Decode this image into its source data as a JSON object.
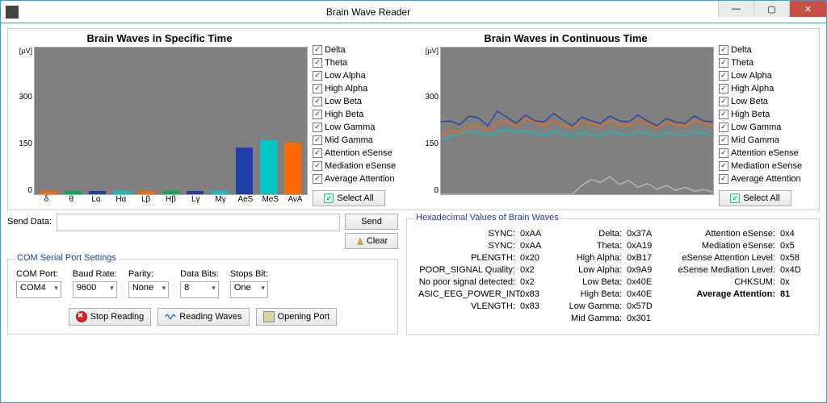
{
  "window": {
    "title": "Brain Wave Reader"
  },
  "chart1": {
    "title": "Brain Waves in Specific Time",
    "type": "bar",
    "unit": "[µV]",
    "ylim": [
      0,
      300
    ],
    "yticks": [
      300,
      150,
      0
    ],
    "background_color": "#808080",
    "categories": [
      "δ",
      "θ",
      "Lα",
      "Hα",
      "Lβ",
      "Hβ",
      "Lγ",
      "Mγ",
      "AeS",
      "MeS",
      "AvA"
    ],
    "values": [
      6,
      6,
      6,
      6,
      6,
      6,
      6,
      6,
      95,
      110,
      105
    ],
    "bar_colors": [
      "#ff6a00",
      "#00b050",
      "#1f3fa8",
      "#00c8c8",
      "#ff6a00",
      "#00b050",
      "#1f3fa8",
      "#00c8c8",
      "#1f3fa8",
      "#00c8c8",
      "#ff6a00"
    ]
  },
  "chart2": {
    "title": "Brain Waves in Continuous Time",
    "type": "line",
    "unit": "[µV]",
    "ylim": [
      0,
      300
    ],
    "yticks": [
      300,
      150,
      0
    ],
    "background_color": "#808080",
    "series": [
      {
        "color": "#1f3fa8",
        "points": [
          148,
          150,
          142,
          160,
          156,
          140,
          170,
          158,
          145,
          162,
          150,
          148,
          165,
          152,
          140,
          158,
          150,
          145,
          160,
          150,
          148,
          162,
          150,
          140,
          155,
          148,
          145,
          160,
          150,
          148
        ]
      },
      {
        "color": "#ff6a00",
        "points": [
          120,
          130,
          125,
          138,
          140,
          130,
          145,
          150,
          138,
          155,
          148,
          140,
          150,
          142,
          135,
          148,
          145,
          138,
          150,
          142,
          140,
          150,
          145,
          135,
          148,
          142,
          140,
          150,
          145,
          140
        ]
      },
      {
        "color": "#00c8c8",
        "points": [
          110,
          118,
          122,
          130,
          125,
          120,
          128,
          132,
          126,
          130,
          124,
          120,
          128,
          125,
          118,
          126,
          122,
          118,
          128,
          124,
          120,
          128,
          124,
          118,
          126,
          122,
          120,
          128,
          124,
          120
        ]
      },
      {
        "color": "#bfbfbf",
        "points": [
          0,
          0,
          0,
          0,
          0,
          0,
          0,
          0,
          0,
          0,
          0,
          0,
          0,
          0,
          0,
          18,
          30,
          24,
          36,
          20,
          28,
          14,
          22,
          10,
          18,
          8,
          14,
          6,
          10,
          4
        ]
      }
    ]
  },
  "legend": {
    "items": [
      "Delta",
      "Theta",
      "Low Alpha",
      "High Alpha",
      "Low Beta",
      "High Beta",
      "Low Gamma",
      "Mid Gamma",
      "Attention eSense",
      "Mediation eSense",
      "Average Attention"
    ],
    "select_all_label": "Select All"
  },
  "send": {
    "label": "Send Data:",
    "value": "",
    "send_label": "Send",
    "clear_label": "Clear"
  },
  "com": {
    "group_title": "COM Serial Port Settings",
    "fields": [
      {
        "label": "COM Port:",
        "value": "COM4"
      },
      {
        "label": "Baud Rate:",
        "value": "9600"
      },
      {
        "label": "Parity:",
        "value": "None"
      },
      {
        "label": "Data Bits:",
        "value": "8"
      },
      {
        "label": "Stops Bit:",
        "value": "One"
      }
    ],
    "buttons": {
      "stop": "Stop Reading",
      "reading": "Reading Waves",
      "opening": "Opening Port"
    }
  },
  "hex": {
    "group_title": "Hexadecimal Values of Brain Waves",
    "col1": [
      {
        "lbl": "SYNC:",
        "val": "0xAA"
      },
      {
        "lbl": "SYNC:",
        "val": "0xAA"
      },
      {
        "lbl": "PLENGTH:",
        "val": "0x20"
      },
      {
        "lbl": "POOR_SIGNAL Quality:",
        "val": "0x2"
      },
      {
        "lbl": "No poor signal detected:",
        "val": "0x2"
      },
      {
        "lbl": "ASIC_EEG_POWER_INT:",
        "val": "0x83"
      },
      {
        "lbl": "VLENGTH:",
        "val": "0x83"
      }
    ],
    "col2": [
      {
        "lbl": "Delta:",
        "val": "0x37A"
      },
      {
        "lbl": "Theta:",
        "val": "0xA19"
      },
      {
        "lbl": "High Alpha:",
        "val": "0xB17"
      },
      {
        "lbl": "Low Alpha:",
        "val": "0x9A9"
      },
      {
        "lbl": "Low Beta:",
        "val": "0x40E"
      },
      {
        "lbl": "High Beta:",
        "val": "0x40E"
      },
      {
        "lbl": "Low Gamma:",
        "val": "0x57D"
      },
      {
        "lbl": "Mid Gamma:",
        "val": "0x301"
      }
    ],
    "col3": [
      {
        "lbl": "Attention eSense:",
        "val": "0x4"
      },
      {
        "lbl": "Mediation eSense:",
        "val": "0x5"
      },
      {
        "lbl": "eSense Attention Level:",
        "val": "0x58"
      },
      {
        "lbl": "eSense Mediation Level:",
        "val": "0x4D"
      },
      {
        "lbl": "CHKSUM:",
        "val": "0x"
      }
    ],
    "avg": {
      "lbl": "Average Attention:",
      "val": "81"
    }
  }
}
